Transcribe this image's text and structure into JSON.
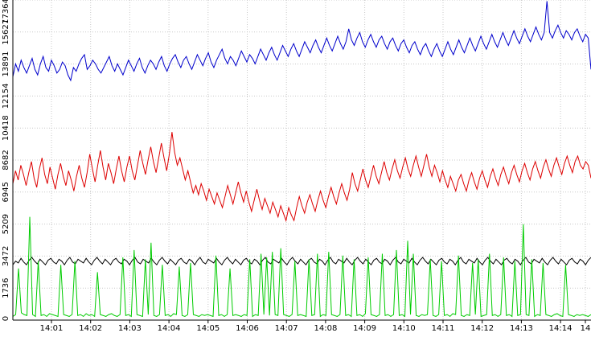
{
  "chart_data": {
    "type": "line",
    "title": "",
    "xlabel": "",
    "ylabel": "",
    "x_ticks": [
      "14:01",
      "14:02",
      "14:03",
      "14:04",
      "14:05",
      "14:06",
      "14:07",
      "14:08",
      "14:09",
      "14:10",
      "14:11",
      "14:12",
      "14:13",
      "14:14",
      "14"
    ],
    "y_ticks": [
      "0",
      "1736",
      "3472",
      "5209",
      "6945",
      "8682",
      "10418",
      "12154",
      "13891",
      "15627",
      "17364"
    ],
    "ylim": [
      0,
      17364
    ],
    "grid": true,
    "legend": "none",
    "series": [
      {
        "color": "#0000cc",
        "values": [
          13200,
          13900,
          13500,
          14100,
          13700,
          13400,
          13800,
          14200,
          13600,
          13300,
          13900,
          14300,
          13700,
          13500,
          14100,
          13800,
          13400,
          13600,
          14000,
          13800,
          13300,
          13000,
          13700,
          13500,
          13900,
          14200,
          14400,
          13600,
          13800,
          14100,
          13900,
          13600,
          13400,
          13700,
          14000,
          14300,
          13800,
          13500,
          13900,
          13600,
          13300,
          13700,
          14100,
          13800,
          13500,
          13900,
          14200,
          13700,
          13400,
          13800,
          14100,
          13900,
          13600,
          14000,
          14300,
          13800,
          13500,
          13900,
          14200,
          14400,
          14000,
          13700,
          14100,
          14300,
          13900,
          13600,
          14000,
          14400,
          14100,
          13800,
          14200,
          14500,
          14000,
          13700,
          14100,
          14400,
          14700,
          14200,
          13900,
          14300,
          14100,
          13800,
          14200,
          14600,
          14300,
          14000,
          14400,
          14200,
          13900,
          14300,
          14700,
          14400,
          14100,
          14500,
          14800,
          14400,
          14100,
          14500,
          14900,
          14600,
          14300,
          14700,
          15000,
          14600,
          14300,
          14700,
          15100,
          14800,
          14500,
          14900,
          15200,
          14800,
          14500,
          14900,
          15300,
          14900,
          14600,
          15000,
          15400,
          15000,
          14700,
          15100,
          15800,
          15200,
          14900,
          15300,
          15600,
          15100,
          14800,
          15200,
          15500,
          15100,
          14800,
          15200,
          15400,
          15000,
          14700,
          15100,
          15300,
          14900,
          14600,
          15000,
          15200,
          14800,
          14500,
          14900,
          15100,
          14700,
          14400,
          14800,
          15000,
          14600,
          14300,
          14700,
          15000,
          14600,
          14300,
          14700,
          15100,
          14700,
          14400,
          14800,
          15200,
          14800,
          14500,
          14900,
          15300,
          14900,
          14600,
          15000,
          15400,
          15000,
          14700,
          15100,
          15500,
          15100,
          14800,
          15200,
          15600,
          15200,
          14900,
          15300,
          15700,
          15300,
          15000,
          15400,
          15800,
          15400,
          15100,
          15500,
          15900,
          15500,
          15200,
          15600,
          17300,
          15600,
          15300,
          15700,
          16000,
          15600,
          15300,
          15700,
          15500,
          15200,
          15600,
          15800,
          15400,
          15100,
          15500,
          15300,
          13600
        ]
      },
      {
        "color": "#dd0000",
        "values": [
          7400,
          8100,
          7600,
          8400,
          7900,
          7300,
          8000,
          8600,
          7700,
          7200,
          8200,
          8800,
          7900,
          7400,
          8300,
          7700,
          7100,
          7900,
          8500,
          7800,
          7300,
          8100,
          7600,
          7000,
          7800,
          8400,
          7700,
          7200,
          8000,
          9000,
          8200,
          7500,
          8400,
          9200,
          8300,
          7600,
          8500,
          8000,
          7400,
          8200,
          8900,
          8100,
          7500,
          8300,
          8900,
          8100,
          7600,
          8400,
          9200,
          8500,
          7900,
          8700,
          9400,
          8600,
          8000,
          8800,
          9600,
          8800,
          8100,
          9000,
          10200,
          9100,
          8400,
          8800,
          8200,
          7600,
          8100,
          7500,
          6900,
          7300,
          6800,
          7400,
          7000,
          6500,
          7100,
          6700,
          6300,
          6900,
          6500,
          6100,
          6700,
          7300,
          6800,
          6300,
          6900,
          7500,
          6900,
          6400,
          7000,
          6400,
          5900,
          6500,
          7100,
          6500,
          6000,
          6600,
          6200,
          5800,
          6400,
          6000,
          5600,
          6200,
          5800,
          5400,
          6100,
          5700,
          5400,
          6100,
          6700,
          6200,
          5800,
          6400,
          6800,
          6300,
          5900,
          6500,
          7000,
          6500,
          6100,
          6700,
          7200,
          6700,
          6300,
          6900,
          7400,
          6900,
          6500,
          7100,
          8000,
          7400,
          7000,
          7600,
          8200,
          7600,
          7200,
          7800,
          8400,
          7800,
          7400,
          8000,
          8600,
          8000,
          7600,
          8200,
          8700,
          8100,
          7700,
          8300,
          8800,
          8200,
          7800,
          8400,
          8900,
          8300,
          7800,
          8400,
          9000,
          8300,
          7800,
          8400,
          8000,
          7500,
          8100,
          7600,
          7200,
          7800,
          7400,
          7000,
          7600,
          7900,
          7400,
          7000,
          7600,
          8000,
          7500,
          7100,
          7700,
          8100,
          7600,
          7200,
          7800,
          8200,
          7700,
          7300,
          7900,
          8300,
          7800,
          7400,
          8000,
          8400,
          7900,
          7500,
          8100,
          8500,
          8000,
          7600,
          8200,
          8600,
          8100,
          7700,
          8300,
          8700,
          8200,
          7800,
          8400,
          8800,
          8300,
          7900,
          8500,
          8900,
          8400,
          8000,
          8600,
          8900,
          8400,
          8200,
          8600,
          8400,
          7700
        ]
      },
      {
        "color": "#000000",
        "values": [
          3000,
          3200,
          3100,
          3350,
          3150,
          3000,
          3250,
          3400,
          3200,
          3050,
          3300,
          3150,
          3000,
          3250,
          3350,
          3150,
          3050,
          3300,
          3200,
          3000,
          3250,
          3400,
          3150,
          3050,
          3300,
          3200,
          3100,
          3350,
          3150,
          3000,
          3250,
          3400,
          3200,
          3050,
          3300,
          3150,
          3000,
          3250,
          3350,
          3150,
          3050,
          3300,
          3200,
          3000,
          3250,
          3400,
          3150,
          3050,
          3300,
          3200,
          3100,
          3350,
          3150,
          3000,
          3250,
          3400,
          3200,
          3050,
          3300,
          3150,
          3000,
          3250,
          3350,
          3150,
          3050,
          3300,
          3200,
          3000,
          3250,
          3400,
          3150,
          3050,
          3300,
          3200,
          3100,
          3350,
          3150,
          3000,
          3250,
          3400,
          3200,
          3050,
          3300,
          3150,
          3000,
          3250,
          3350,
          3150,
          3050,
          3300,
          3200,
          3000,
          3250,
          3400,
          3150,
          3050,
          3300,
          3200,
          3100,
          3350,
          3150,
          3000,
          3250,
          3400,
          3200,
          3050,
          3300,
          3150,
          3000,
          3250,
          3350,
          3150,
          3050,
          3300,
          3200,
          3000,
          3250,
          3400,
          3150,
          3050,
          3300,
          3200,
          3100,
          3350,
          3150,
          3000,
          3250,
          3400,
          3200,
          3050,
          3300,
          3150,
          3000,
          3250,
          3350,
          3150,
          3050,
          3300,
          3200,
          3000,
          3250,
          3400,
          3150,
          3050,
          3300,
          3200,
          3100,
          3350,
          3150,
          3000,
          3250,
          3400,
          3200,
          3050,
          3300,
          3150,
          3000,
          3250,
          3350,
          3150,
          3050,
          3300,
          3200,
          3000,
          3250,
          3400,
          3150,
          3050,
          3300,
          3200,
          3100,
          3350,
          3150,
          3000,
          3250,
          3400,
          3200,
          3050,
          3300,
          3150,
          3000,
          3250,
          3350,
          3150,
          3050,
          3300,
          3200,
          3000,
          3250,
          3400,
          3150,
          3050,
          3300,
          3200,
          3100,
          3350,
          3150,
          3000,
          3250,
          3400,
          3200,
          3050,
          3300,
          3150,
          3000,
          3250,
          3350,
          3150,
          3050,
          3300,
          3200,
          3000,
          3250,
          3400
        ]
      },
      {
        "color": "#00cc00",
        "values": [
          200,
          300,
          2800,
          400,
          300,
          250,
          5600,
          300,
          200,
          3200,
          250,
          300,
          200,
          350,
          300,
          250,
          200,
          3000,
          300,
          250,
          200,
          300,
          3200,
          250,
          300,
          200,
          350,
          250,
          300,
          200,
          2600,
          300,
          250,
          200,
          300,
          350,
          250,
          200,
          300,
          3400,
          250,
          300,
          200,
          3800,
          300,
          250,
          200,
          3300,
          300,
          4200,
          250,
          200,
          300,
          3000,
          250,
          300,
          200,
          350,
          300,
          2900,
          250,
          200,
          300,
          3100,
          300,
          250,
          200,
          300,
          250,
          300,
          250,
          200,
          3500,
          250,
          300,
          200,
          300,
          2800,
          250,
          300,
          250,
          200,
          300,
          250,
          3300,
          200,
          300,
          250,
          3600,
          300,
          3400,
          250,
          3700,
          300,
          250,
          3900,
          300,
          250,
          200,
          300,
          3200,
          250,
          300,
          250,
          200,
          3300,
          250,
          300,
          3600,
          200,
          300,
          250,
          3700,
          300,
          250,
          200,
          300,
          3500,
          250,
          300,
          200,
          3300,
          250,
          300,
          200,
          350,
          3400,
          300,
          250,
          200,
          300,
          3600,
          250,
          300,
          200,
          300,
          3800,
          250,
          300,
          200,
          4300,
          300,
          3600,
          250,
          200,
          300,
          250,
          300,
          3300,
          250,
          200,
          300,
          3200,
          250,
          300,
          200,
          350,
          300,
          3500,
          250,
          200,
          300,
          250,
          3100,
          300,
          3300,
          200,
          250,
          300,
          3600,
          250,
          300,
          200,
          300,
          3400,
          250,
          300,
          200,
          3200,
          250,
          300,
          5200,
          300,
          250,
          3300,
          200,
          300,
          250,
          3100,
          300,
          250,
          200,
          300,
          350,
          250,
          200,
          3000,
          300,
          250,
          200,
          300,
          250,
          300,
          250,
          200,
          300
        ]
      }
    ]
  }
}
